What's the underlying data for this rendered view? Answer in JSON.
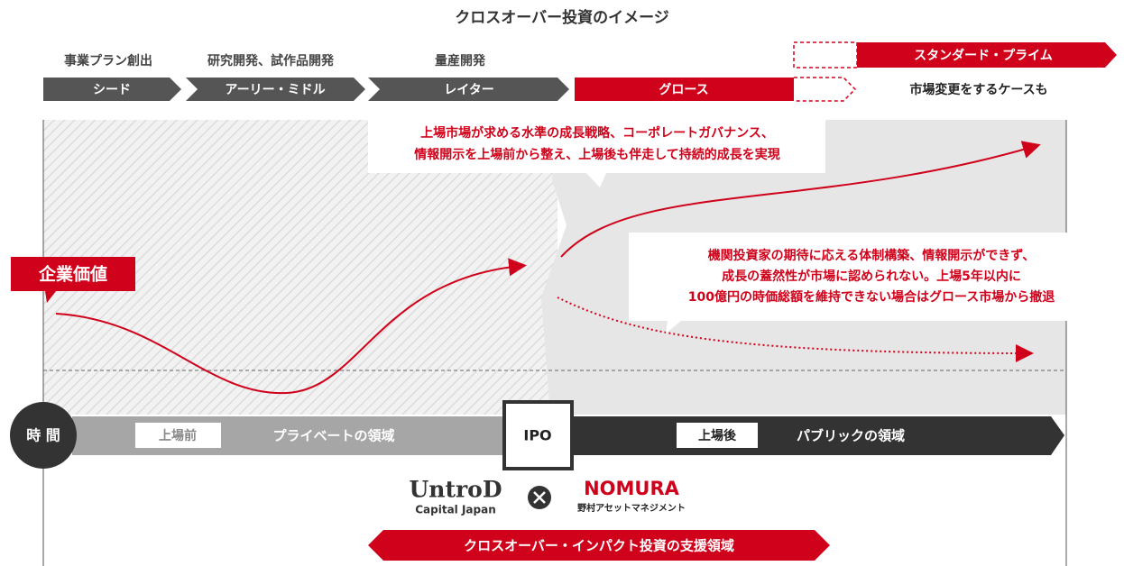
{
  "header": {
    "title": "クロスオーバー投資のイメージ"
  },
  "stage_labels": [
    "事業プラン創出",
    "研究開発、試作品開発",
    "量産開発"
  ],
  "stages": [
    "シード",
    "アーリー・ミドル",
    "レイター",
    "グロース"
  ],
  "market_change": {
    "target": "スタンダード・プライム",
    "note": "市場変更をするケースも"
  },
  "callouts": [
    {
      "lines": [
        "上場市場が求める水準の成長戦略、コーポレートガバナンス、",
        "情報開示を上場前から整え、上場後も伴走して持続的成長を実現"
      ]
    },
    {
      "lines": [
        "機関投資家の期待に応える体制構築、情報開示ができず、",
        "成長の蓋然性が市場に認められない。上場5年以内に",
        "100億円の時価総額を維持できない場合はグロース市場から撤退"
      ]
    }
  ],
  "value_label": "企業価値",
  "timeline": {
    "axis": "時 間",
    "pre": "上場前",
    "private": "プライベートの領域",
    "ipo": "IPO",
    "post": "上場後",
    "public": "パブリックの領域"
  },
  "logos": {
    "untrod": "UntroD",
    "untrod_sub": "Capital Japan",
    "nomura": "NOMURA",
    "nomura_sub": "野村アセットマネジメント"
  },
  "footer": {
    "support": "クロスオーバー・インパクト投資の支援領域"
  }
}
